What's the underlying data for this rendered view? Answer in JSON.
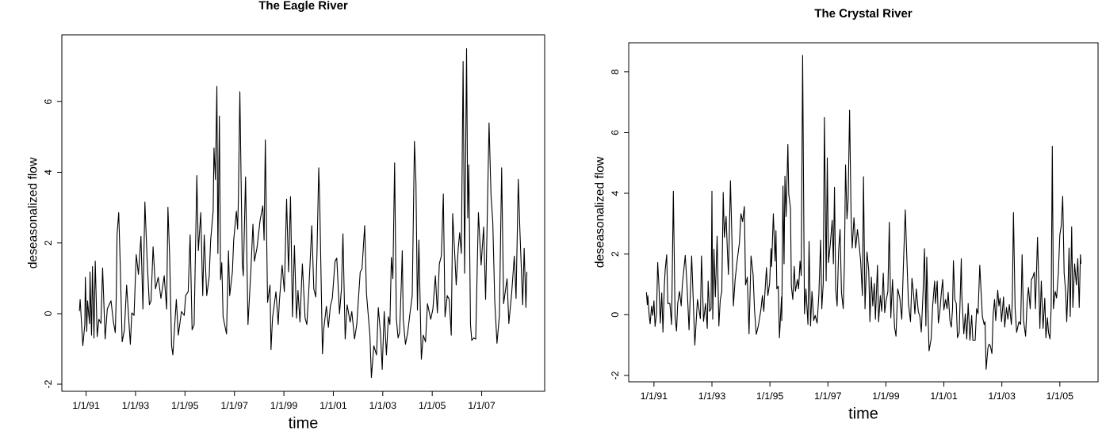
{
  "chart_data": [
    {
      "type": "line",
      "title": "The Eagle River",
      "xlabel": "time",
      "ylabel": "deseasonalized flow",
      "color": "#000000",
      "xlim": [
        "1990-01-08",
        "2009-07-20"
      ],
      "ylim": [
        -2.2,
        7.89
      ],
      "xticks": [
        {
          "value": "1991-01-01",
          "label": "1/1/91"
        },
        {
          "value": "1993-01-01",
          "label": "1/1/93"
        },
        {
          "value": "1995-01-01",
          "label": "1/1/95"
        },
        {
          "value": "1997-01-01",
          "label": "1/1/97"
        },
        {
          "value": "1999-01-01",
          "label": "1/1/99"
        },
        {
          "value": "2001-01-01",
          "label": "1/1/01"
        },
        {
          "value": "2003-01-01",
          "label": "1/1/03"
        },
        {
          "value": "2005-01-01",
          "label": "1/1/05"
        },
        {
          "value": "2007-01-01",
          "label": "1/1/07"
        }
      ],
      "yticks": [
        -2,
        0,
        2,
        4,
        6
      ],
      "x": [
        "1990-09-24",
        "1990-10-05",
        "1990-11-14",
        "1990-12-13",
        "1990-12-21",
        "1991-01-11",
        "1991-01-22",
        "1991-02-21",
        "1991-02-28",
        "1991-03-22",
        "1991-04-05",
        "1991-04-27",
        "1991-05-16",
        "1991-06-14",
        "1991-07-09",
        "1991-08-08",
        "1991-09-02",
        "1991-10-09",
        "1991-11-10",
        "1992-01-04",
        "1992-02-06",
        "1992-03-07",
        "1992-03-22",
        "1992-04-02",
        "1992-04-27",
        "1992-05-19",
        "1992-06-17",
        "1992-07-20",
        "1992-08-22",
        "1992-09-20",
        "1992-10-16",
        "1992-11-07",
        "1992-12-10",
        "1993-01-11",
        "1993-02-13",
        "1993-03-22",
        "1993-04-20",
        "1993-05-19",
        "1993-06-21",
        "1993-07-24",
        "1993-08-18",
        "1993-09-17",
        "1993-10-23",
        "1993-12-02",
        "1994-01-11",
        "1994-02-28",
        "1994-04-05",
        "1994-04-24",
        "1994-05-19",
        "1994-06-17",
        "1994-07-06",
        "1994-08-26",
        "1994-09-24",
        "1994-11-10",
        "1994-12-21",
        "1995-01-11",
        "1995-02-17",
        "1995-03-18",
        "1995-04-16",
        "1995-05-16",
        "1995-06-25",
        "1995-07-17",
        "1995-08-22",
        "1995-09-20",
        "1995-10-12",
        "1995-11-18",
        "1995-12-24",
        "1996-01-15",
        "1996-02-21",
        "1996-03-04",
        "1996-03-25",
        "1996-04-16",
        "1996-05-01",
        "1996-05-23",
        "1996-06-10",
        "1996-06-28",
        "1996-07-17",
        "1996-09-06",
        "1996-10-05",
        "1996-10-23",
        "1996-12-02",
        "1996-12-21",
        "1997-01-30",
        "1997-02-17",
        "1997-02-28",
        "1997-03-22",
        "1997-04-27",
        "1997-05-12",
        "1997-06-14",
        "1997-07-20",
        "1997-09-02",
        "1997-10-01",
        "1997-10-23",
        "1997-11-29",
        "1998-01-15",
        "1998-02-24",
        "1998-03-15",
        "1998-04-02",
        "1998-05-05",
        "1998-06-10",
        "1998-06-25",
        "1998-07-17",
        "1998-09-06",
        "1998-10-09",
        "1998-10-27",
        "1998-12-06",
        "1999-01-08",
        "1999-02-10",
        "1999-03-11",
        "1999-04-09",
        "1999-05-08",
        "1999-06-06",
        "1999-07-06",
        "1999-07-28",
        "1999-08-26",
        "1999-10-01",
        "1999-11-10",
        "1999-12-06",
        "2000-01-08",
        "2000-02-17",
        "2000-03-18",
        "2000-04-16",
        "2000-05-05",
        "2000-05-30",
        "2000-06-14",
        "2000-07-24",
        "2000-08-11",
        "2000-09-20",
        "2000-10-20",
        "2000-11-18",
        "2000-12-17",
        "2001-01-26",
        "2001-02-21",
        "2001-04-02",
        "2001-05-01",
        "2001-05-23",
        "2001-06-25",
        "2001-07-24",
        "2001-09-06",
        "2001-10-01",
        "2001-11-10",
        "2001-12-13",
        "2002-02-02",
        "2002-02-28",
        "2002-04-09",
        "2002-05-05",
        "2002-05-30",
        "2002-06-25",
        "2002-07-17",
        "2002-08-22",
        "2002-10-01",
        "2002-10-27",
        "2002-11-29",
        "2002-12-24",
        "2003-01-22",
        "2003-02-24",
        "2003-03-25",
        "2003-04-16",
        "2003-05-08",
        "2003-05-30",
        "2003-06-25",
        "2003-07-20",
        "2003-08-15",
        "2003-09-06",
        "2003-10-01",
        "2003-10-16",
        "2003-10-30",
        "2003-12-02",
        "2004-01-04",
        "2004-02-10",
        "2004-03-11",
        "2004-04-13",
        "2004-05-05",
        "2004-05-27",
        "2004-06-17",
        "2004-07-24",
        "2004-08-22",
        "2004-09-24",
        "2004-10-23",
        "2004-12-10",
        "2005-01-11",
        "2005-02-17",
        "2005-03-18",
        "2005-04-16",
        "2005-05-16",
        "2005-06-14",
        "2005-07-09",
        "2005-08-11",
        "2005-09-09",
        "2005-10-09",
        "2005-10-30",
        "2005-11-29",
        "2005-12-21",
        "2006-01-19",
        "2006-02-10",
        "2006-03-07",
        "2006-04-02",
        "2006-04-24",
        "2006-05-23",
        "2006-06-10",
        "2006-06-25",
        "2006-07-20",
        "2006-08-08",
        "2006-09-06",
        "2006-10-05",
        "2006-11-14",
        "2006-12-24",
        "2007-01-30",
        "2007-02-28",
        "2007-03-22",
        "2007-04-20",
        "2007-05-19",
        "2007-06-14",
        "2007-07-13",
        "2007-08-15",
        "2007-09-20",
        "2007-10-23",
        "2007-11-21",
        "2008-01-11",
        "2008-02-06",
        "2008-03-18",
        "2008-04-27",
        "2008-05-23",
        "2008-06-25",
        "2008-07-20",
        "2008-08-29",
        "2008-09-20",
        "2008-10-16",
        "2008-10-30"
      ],
      "values": [
        0.07,
        0.4,
        -0.91,
        -0.31,
        1.03,
        -0.5,
        0.36,
        -0.28,
        1.18,
        -0.61,
        1.33,
        -0.69,
        1.49,
        -0.65,
        -0.16,
        -0.28,
        1.29,
        -0.72,
        0.13,
        0.36,
        -0.2,
        -0.54,
        0.51,
        2.23,
        2.86,
        1.41,
        -0.8,
        -0.46,
        0.81,
        -0.09,
        -0.87,
        0.02,
        -0.05,
        1.67,
        1.11,
        2.19,
        0.13,
        3.16,
        1.52,
        0.25,
        0.36,
        1.89,
        0.7,
        1.03,
        0.43,
        1.07,
        0.13,
        3.01,
        1.63,
        -0.91,
        -1.17,
        0.4,
        -0.61,
        0.06,
        -0.05,
        0.51,
        0.62,
        2.23,
        -0.46,
        -0.31,
        3.91,
        1.78,
        2.86,
        0.51,
        2.23,
        0.51,
        1.03,
        2.08,
        2.9,
        4.69,
        3.8,
        6.43,
        1.7,
        5.59,
        0.96,
        1.44,
        -0.09,
        -0.58,
        1.78,
        0.51,
        1.18,
        2.08,
        2.9,
        2.39,
        3.2,
        6.28,
        1.41,
        1.07,
        3.87,
        -0.31,
        1.26,
        2.53,
        1.48,
        1.85,
        2.64,
        3.05,
        2.08,
        4.92,
        0.32,
        0.81,
        -1.02,
        -0.13,
        0.62,
        -0.31,
        0.36,
        1.37,
        0.62,
        3.24,
        1.18,
        3.31,
        -0.09,
        1.93,
        -0.13,
        0.66,
        -0.24,
        1.41,
        -0.13,
        -0.31,
        0.81,
        2.49,
        0.7,
        0.47,
        1.78,
        4.13,
        3.12,
        -1.14,
        -0.46,
        0.21,
        -0.39,
        0.21,
        0.43,
        1.48,
        1.57,
        -0.01,
        0.7,
        2.26,
        -0.72,
        0.25,
        -0.24,
        0.06,
        -0.72,
        -0.31,
        1.18,
        1.26,
        2.49,
        0.58,
        -0.01,
        -0.61,
        -1.81,
        -0.91,
        -1.17,
        0.17,
        -0.58,
        -1.58,
        0.06,
        -1.17,
        -0.09,
        -0.31,
        1.59,
        0.99,
        4.27,
        -0.13,
        -0.69,
        -0.54,
        0.81,
        1.78,
        -0.16,
        -0.87,
        -0.54,
        0.06,
        0.51,
        4.88,
        3.72,
        0.1,
        2.08,
        -1.29,
        -0.61,
        -0.8,
        0.28,
        -0.16,
        0.13,
        1.07,
        0.02,
        1.41,
        1.63,
        3.39,
        -0.09,
        0.51,
        0.4,
        -0.61,
        2.83,
        1.7,
        0.81,
        1.82,
        2.29,
        1.7,
        7.14,
        1.14,
        7.5,
        2.71,
        4.21,
        -0.31,
        -0.76,
        -0.69,
        -0.72,
        2.86,
        1.37,
        2.45,
        0.4,
        2.45,
        5.4,
        3.35,
        2.6,
        0.36,
        -0.84,
        -0.05,
        4.13,
        0.28,
        0.99,
        -0.28,
        0.55,
        1.63,
        0.43,
        3.8,
        2.3,
        0.25,
        1.85,
        0.17,
        1.18
      ]
    },
    {
      "type": "line",
      "title": "The Crystal River",
      "xlabel": "time",
      "ylabel": "deseasonalized flow",
      "color": "#000000",
      "xlim": [
        "1990-02-17",
        "2006-04-27"
      ],
      "ylim": [
        -2.21,
        8.96
      ],
      "xticks": [
        {
          "value": "1991-01-01",
          "label": "1/1/91"
        },
        {
          "value": "1993-01-01",
          "label": "1/1/93"
        },
        {
          "value": "1995-01-01",
          "label": "1/1/95"
        },
        {
          "value": "1997-01-01",
          "label": "1/1/97"
        },
        {
          "value": "1999-01-01",
          "label": "1/1/99"
        },
        {
          "value": "2001-01-01",
          "label": "1/1/01"
        },
        {
          "value": "2003-01-01",
          "label": "1/1/03"
        },
        {
          "value": "2005-01-01",
          "label": "1/1/05"
        }
      ],
      "yticks": [
        -2,
        0,
        2,
        4,
        6,
        8
      ],
      "x": [
        "1990-09-28",
        "1990-10-09",
        "1990-10-16",
        "1990-11-03",
        "1990-11-14",
        "1990-12-02",
        "1990-12-17",
        "1991-01-01",
        "1991-01-15",
        "1991-02-02",
        "1991-02-17",
        "1991-03-04",
        "1991-03-22",
        "1991-04-09",
        "1991-04-24",
        "1991-05-12",
        "1991-05-23",
        "1991-06-10",
        "1991-06-25",
        "1991-07-20",
        "1991-08-11",
        "1991-09-02",
        "1991-09-24",
        "1991-10-12",
        "1991-10-27",
        "1991-11-18",
        "1991-12-10",
        "1991-12-24",
        "1992-01-30",
        "1992-02-21",
        "1992-03-18",
        "1992-04-20",
        "1992-05-30",
        "1992-07-02",
        "1992-08-08",
        "1992-08-22",
        "1992-09-17",
        "1992-10-12",
        "1992-11-03",
        "1992-11-14",
        "1992-12-02",
        "1992-12-21",
        "1993-01-01",
        "1993-01-11",
        "1993-01-26",
        "1993-02-13",
        "1993-03-07",
        "1993-03-29",
        "1993-04-16",
        "1993-05-05",
        "1993-05-23",
        "1993-06-06",
        "1993-06-28",
        "1993-07-17",
        "1993-07-28",
        "1993-08-22",
        "1993-09-09",
        "1993-09-28",
        "1993-10-20",
        "1993-11-14",
        "1993-12-13",
        "1994-01-01",
        "1994-01-22",
        "1994-02-13",
        "1994-02-28",
        "1994-03-22",
        "1994-04-13",
        "1994-05-08",
        "1994-06-03",
        "1994-06-21",
        "1994-07-13",
        "1994-08-08",
        "1994-09-09",
        "1994-09-28",
        "1994-10-16",
        "1994-11-18",
        "1994-12-06",
        "1994-12-28",
        "1995-01-15",
        "1995-01-22",
        "1995-02-13",
        "1995-03-07",
        "1995-03-18",
        "1995-03-29",
        "1995-04-16",
        "1995-05-01",
        "1995-05-27",
        "1995-05-30",
        "1995-06-14",
        "1995-06-28",
        "1995-07-09",
        "1995-07-24",
        "1995-08-15",
        "1995-08-26",
        "1995-09-17",
        "1995-09-28",
        "1995-10-16",
        "1995-11-03",
        "1995-11-18",
        "1995-12-13",
        "1995-12-28",
        "1996-01-15",
        "1996-01-30",
        "1996-02-17",
        "1996-03-11",
        "1996-03-29",
        "1996-04-24",
        "1996-05-08",
        "1996-05-27",
        "1996-06-14",
        "1996-07-06",
        "1996-07-24",
        "1996-08-18",
        "1996-09-09",
        "1996-10-01",
        "1996-10-16",
        "1996-11-03",
        "1996-11-18",
        "1996-12-10",
        "1996-12-24",
        "1997-01-08",
        "1997-01-30",
        "1997-02-24",
        "1997-03-11",
        "1997-03-25",
        "1997-04-09",
        "1997-04-27",
        "1997-05-16",
        "1997-06-03",
        "1997-06-21",
        "1997-07-13",
        "1997-07-28",
        "1997-08-11",
        "1997-08-29",
        "1997-09-13",
        "1997-10-01",
        "1997-10-20",
        "1997-11-03",
        "1997-11-25",
        "1997-12-17",
        "1998-01-08",
        "1998-02-02",
        "1998-02-17",
        "1998-03-11",
        "1998-03-25",
        "1998-04-13",
        "1998-05-08",
        "1998-05-30",
        "1998-06-14",
        "1998-07-02",
        "1998-07-20",
        "1998-08-08",
        "1998-08-22",
        "1998-09-17",
        "1998-10-01",
        "1998-10-23",
        "1998-11-10",
        "1998-11-29",
        "1998-12-17",
        "1999-01-04",
        "1999-01-26",
        "1999-02-13",
        "1999-03-04",
        "1999-03-25",
        "1999-04-20",
        "1999-05-08",
        "1999-05-30",
        "1999-06-25",
        "1999-07-20",
        "1999-08-08",
        "1999-09-02",
        "1999-09-20",
        "1999-10-12",
        "1999-11-07",
        "1999-11-25",
        "1999-12-17",
        "2000-01-01",
        "2000-01-19",
        "2000-02-13",
        "2000-03-04",
        "2000-03-22",
        "2000-04-13",
        "2000-05-01",
        "2000-05-19",
        "2000-05-30",
        "2000-06-17",
        "2000-06-28",
        "2000-07-24",
        "2000-08-11",
        "2000-09-06",
        "2000-09-17",
        "2000-10-09",
        "2000-10-23",
        "2000-11-10",
        "2000-11-29",
        "2000-12-17",
        "2001-01-01",
        "2001-01-22",
        "2001-02-10",
        "2001-02-24",
        "2001-03-18",
        "2001-04-05",
        "2001-04-20",
        "2001-05-01",
        "2001-05-19",
        "2001-06-06",
        "2001-06-21",
        "2001-07-13",
        "2001-08-08",
        "2001-08-15",
        "2001-09-09",
        "2001-09-28",
        "2001-10-16",
        "2001-11-03",
        "2001-11-25",
        "2001-12-17",
        "2002-01-01",
        "2002-01-30",
        "2002-02-17",
        "2002-03-07",
        "2002-03-29",
        "2002-04-13",
        "2002-05-01",
        "2002-05-23",
        "2002-06-03",
        "2002-06-17",
        "2002-07-09",
        "2002-07-24",
        "2002-08-08",
        "2002-08-29",
        "2002-09-13",
        "2002-10-01",
        "2002-10-16",
        "2002-11-10",
        "2002-11-25",
        "2002-12-10",
        "2002-12-28",
        "2003-01-22",
        "2003-02-06",
        "2003-02-28",
        "2003-03-18",
        "2003-04-05",
        "2003-05-01",
        "2003-05-12",
        "2003-05-27",
        "2003-06-17",
        "2003-07-06",
        "2003-08-04",
        "2003-08-26",
        "2003-09-13",
        "2003-10-01",
        "2003-10-27",
        "2003-11-14",
        "2003-12-02",
        "2003-12-24",
        "2004-01-08",
        "2004-01-26",
        "2004-02-13",
        "2004-02-28",
        "2004-03-25",
        "2004-04-09",
        "2004-04-24",
        "2004-05-12",
        "2004-06-03",
        "2004-06-25",
        "2004-07-09",
        "2004-07-28",
        "2004-08-11",
        "2004-08-29",
        "2004-09-13",
        "2004-09-28",
        "2004-10-12",
        "2004-11-03",
        "2004-11-21",
        "2004-12-13",
        "2005-01-01",
        "2005-01-19",
        "2005-02-06",
        "2005-02-24",
        "2005-03-15",
        "2005-03-29",
        "2005-04-13",
        "2005-04-27",
        "2005-05-12",
        "2005-05-30",
        "2005-06-14",
        "2005-07-06",
        "2005-07-28",
        "2005-08-15",
        "2005-09-02",
        "2005-09-17",
        "2005-09-24"
      ],
      "values": [
        0.74,
        0.33,
        0.63,
        -0.06,
        -0.3,
        0.29,
        -0.02,
        0.46,
        -0.39,
        0.03,
        1.72,
        0.98,
        -0.28,
        0.72,
        -0.57,
        0.98,
        1.5,
        1.98,
        0.37,
        0.37,
        -0.32,
        4.07,
        -0.06,
        -0.54,
        0.37,
        0.77,
        0.29,
        0.98,
        1.96,
        0.98,
        -0.5,
        1.94,
        -1.0,
        0.5,
        -0.13,
        1.94,
        -0.22,
        0.37,
        -0.45,
        1.11,
        0.11,
        0.2,
        4.07,
        -0.15,
        2.16,
        0.59,
        2.59,
        -0.37,
        0.5,
        0.77,
        4.03,
        2.55,
        3.24,
        1.94,
        1.33,
        4.42,
        2.55,
        0.29,
        1.16,
        1.77,
        2.37,
        3.33,
        3.07,
        3.57,
        0.98,
        1.24,
        -0.63,
        1.94,
        1.33,
        0.16,
        -0.65,
        -0.37,
        0.16,
        0.63,
        0.11,
        1.55,
        0.63,
        1.03,
        2.18,
        1.59,
        3.33,
        1.77,
        2.77,
        0.85,
        0.94,
        -0.76,
        0.59,
        -0.19,
        4.24,
        1.68,
        4.57,
        3.24,
        5.61,
        3.98,
        3.5,
        0.94,
        0.5,
        1.59,
        0.77,
        1.16,
        0.85,
        1.77,
        1.29,
        8.55,
        0.03,
        0.85,
        -0.32,
        2.42,
        -0.37,
        0.77,
        -0.19,
        -0.02,
        -0.28,
        0.68,
        2.46,
        0.2,
        1.03,
        6.5,
        1.11,
        5.17,
        1.72,
        2.29,
        3.11,
        1.68,
        4.2,
        0.85,
        0.29,
        2.11,
        2.81,
        0.72,
        0.2,
        1.72,
        4.94,
        3.16,
        3.81,
        6.74,
        3.24,
        2.2,
        3.2,
        2.2,
        2.81,
        2.2,
        1.77,
        0.63,
        4.55,
        0.2,
        2.07,
        1.46,
        -0.23,
        1.24,
        0.29,
        1.03,
        -0.15,
        1.63,
        -0.23,
        0.63,
        0.11,
        1.37,
        0.07,
        0.46,
        0.77,
        3.05,
        -0.1,
        1.16,
        -0.41,
        -0.71,
        0.85,
        0.55,
        -0.15,
        1.5,
        3.46,
        2.01,
        0.37,
        -0.23,
        1.2,
        0.63,
        0.03,
        0.85,
        0.11,
        -0.06,
        -0.57,
        0.72,
        2.18,
        -0.37,
        1.9,
        -0.15,
        -1.19,
        -0.8,
        0.24,
        1.11,
        0.37,
        1.11,
        -0.28,
        0.07,
        0.68,
        1.16,
        0.16,
        0.5,
        0.2,
        0.74,
        -0.19,
        -0.41,
        0.2,
        1.78,
        0.5,
        0.37,
        -0.76,
        -0.58,
        1.85,
        0.63,
        -0.63,
        0.03,
        -0.8,
        0.37,
        -0.84,
        -0.02,
        -0.84,
        -0.84,
        0.2,
        0.03,
        1.63,
        0.85,
        -0.06,
        -0.32,
        -0.23,
        -1.8,
        -1.1,
        -0.97,
        -1.02,
        -1.28,
        -0.02,
        0.5,
        -0.19,
        0.81,
        0.29,
        0.55,
        -0.23,
        0.59,
        -0.41,
        0.24,
        -0.15,
        0.33,
        -0.32,
        0.42,
        3.37,
        0.2,
        -0.58,
        -0.23,
        -0.32,
        1.98,
        -0.19,
        -0.71,
        0.37,
        0.9,
        0.2,
        1.16,
        1.24,
        1.4,
        0.2,
        2.55,
        1.16,
        -0.45,
        1.11,
        -0.45,
        0.55,
        -0.76,
        -0.1,
        -0.58,
        -0.8,
        0.2,
        5.55,
        0.2,
        0.77,
        0.55,
        1.37,
        2.63,
        2.94,
        3.9,
        1.37,
        0.77,
        -0.23,
        0.85,
        2.2,
        -0.06,
        2.9,
        0.24,
        1.68,
        0.98,
        1.85,
        0.24,
        1.98,
        1.68
      ]
    }
  ]
}
